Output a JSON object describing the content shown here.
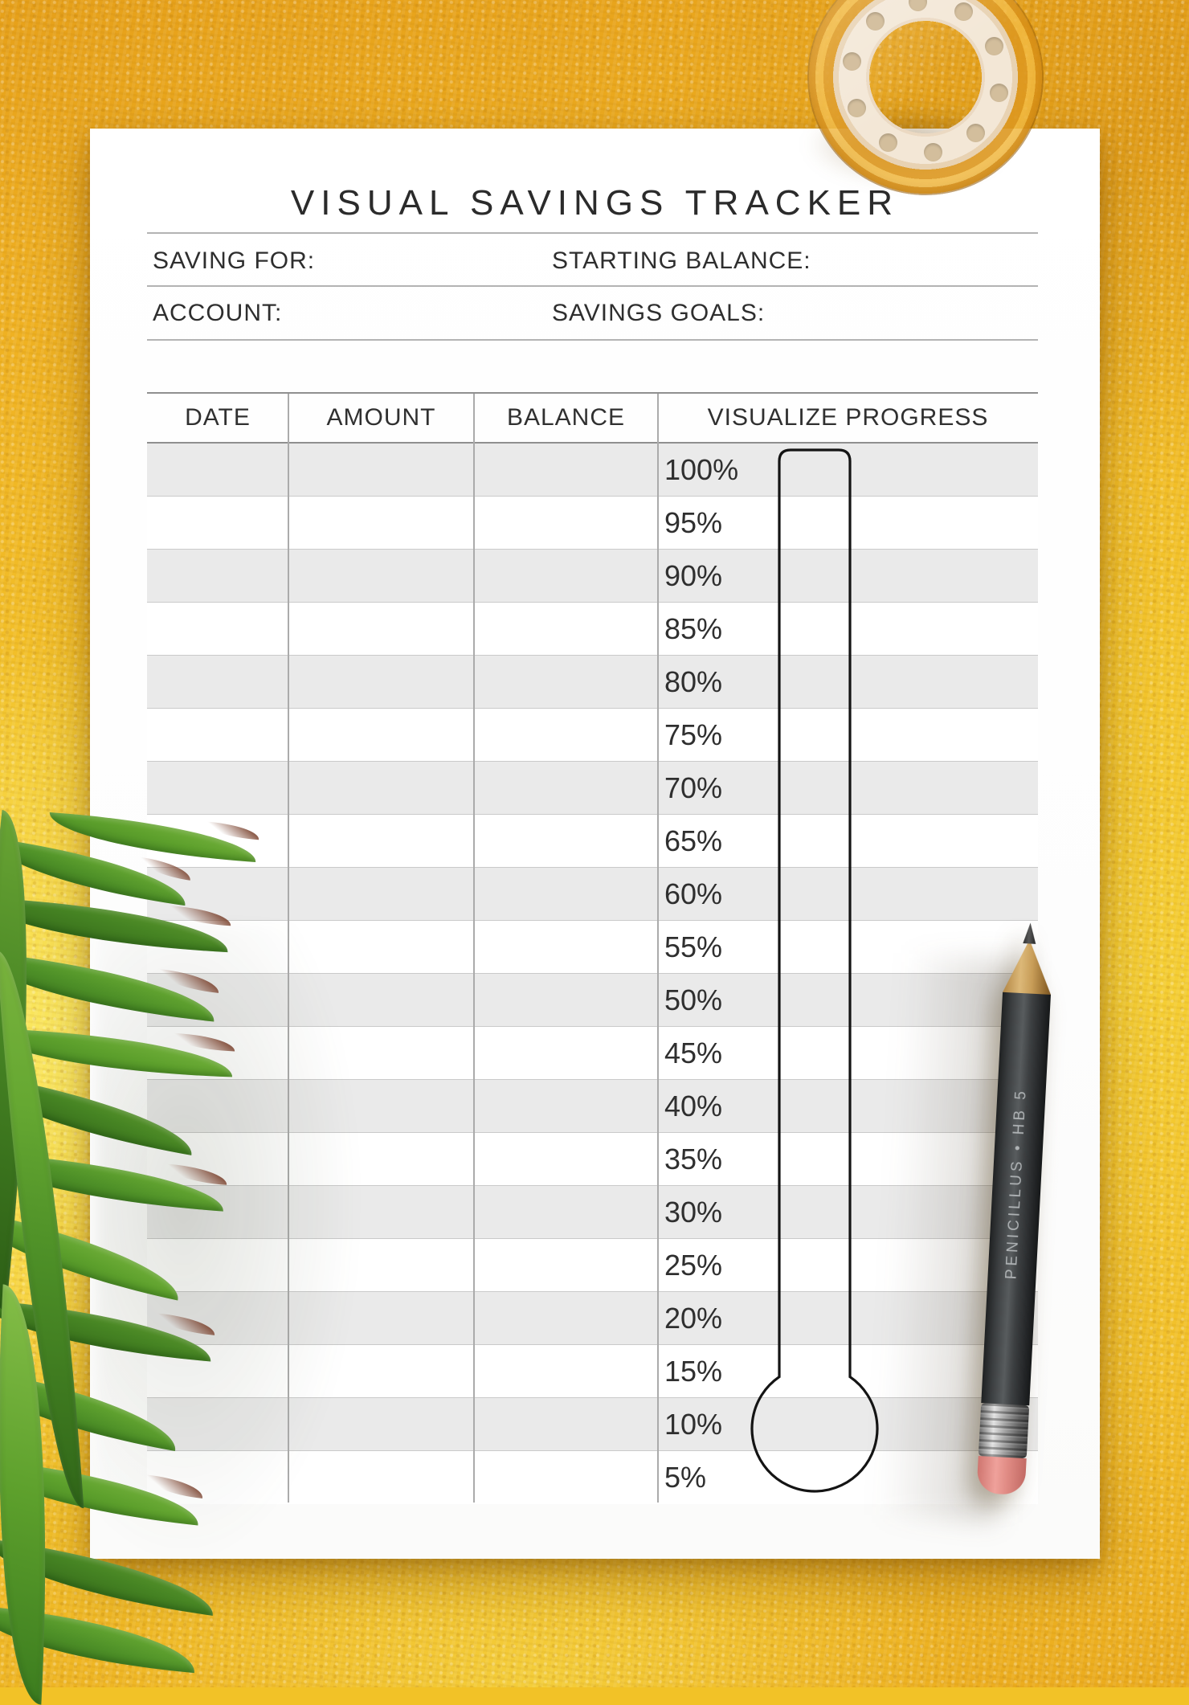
{
  "page": {
    "title": "VISUAL SAVINGS TRACKER"
  },
  "fields": {
    "saving_for_label": "SAVING FOR:",
    "starting_balance_label": "STARTING BALANCE:",
    "account_label": "ACCOUNT:",
    "savings_goals_label": "SAVINGS GOALS:",
    "saving_for_value": "",
    "starting_balance_value": "",
    "account_value": "",
    "savings_goals_value": ""
  },
  "table": {
    "headers": [
      "DATE",
      "AMOUNT",
      "BALANCE",
      "VISUALIZE PROGRESS"
    ],
    "progress_scale": [
      "100%",
      "95%",
      "90%",
      "85%",
      "80%",
      "75%",
      "70%",
      "65%",
      "60%",
      "55%",
      "50%",
      "45%",
      "40%",
      "35%",
      "30%",
      "25%",
      "20%",
      "15%",
      "10%",
      "5%"
    ],
    "rows": [
      {
        "date": "",
        "amount": "",
        "balance": ""
      },
      {
        "date": "",
        "amount": "",
        "balance": ""
      },
      {
        "date": "",
        "amount": "",
        "balance": ""
      },
      {
        "date": "",
        "amount": "",
        "balance": ""
      },
      {
        "date": "",
        "amount": "",
        "balance": ""
      },
      {
        "date": "",
        "amount": "",
        "balance": ""
      },
      {
        "date": "",
        "amount": "",
        "balance": ""
      },
      {
        "date": "",
        "amount": "",
        "balance": ""
      },
      {
        "date": "",
        "amount": "",
        "balance": ""
      },
      {
        "date": "",
        "amount": "",
        "balance": ""
      },
      {
        "date": "",
        "amount": "",
        "balance": ""
      },
      {
        "date": "",
        "amount": "",
        "balance": ""
      },
      {
        "date": "",
        "amount": "",
        "balance": ""
      },
      {
        "date": "",
        "amount": "",
        "balance": ""
      },
      {
        "date": "",
        "amount": "",
        "balance": ""
      },
      {
        "date": "",
        "amount": "",
        "balance": ""
      },
      {
        "date": "",
        "amount": "",
        "balance": ""
      },
      {
        "date": "",
        "amount": "",
        "balance": ""
      },
      {
        "date": "",
        "amount": "",
        "balance": ""
      },
      {
        "date": "",
        "amount": "",
        "balance": ""
      }
    ]
  },
  "decor": {
    "pencil_label": "PENICILLUS  •  HB 5"
  },
  "colors": {
    "fabric_yellow": "#F2C227",
    "paper": "#FFFFFF",
    "row_shade": "#EAEAEA",
    "grid_line": "#ABABAB",
    "thermometer_outline": "#141414",
    "text": "#2E2E2E",
    "eraser_pink": "#E2837D",
    "leaf_green": "#4D8F27",
    "tape_amber": "#DD9820"
  }
}
